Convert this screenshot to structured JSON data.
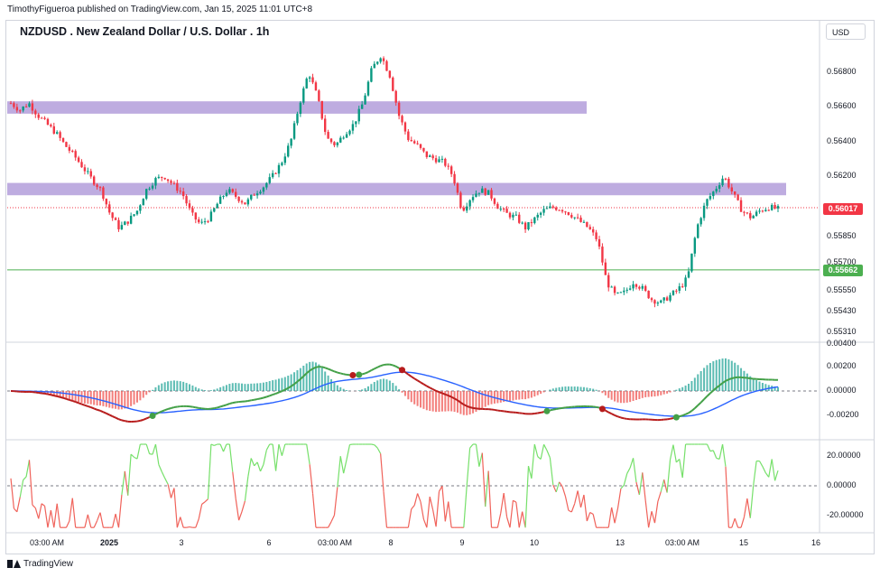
{
  "header": {
    "published": "TimothyFigueroa published on TradingView.com, Jan 15, 2025 11:01 UTC+8"
  },
  "footer": {
    "brand": "TradingView"
  },
  "chart_data": {
    "type": "candlestick",
    "title": "NZDUSD . New Zealand Dollar / U.S. Dollar . 1h",
    "currency": "USD",
    "price_ticks": [
      "0.56800",
      "0.56600",
      "0.56400",
      "0.56200",
      "0.55850",
      "0.55700",
      "0.55550",
      "0.55430",
      "0.55310"
    ],
    "last_price": "0.56017",
    "hline_price": "0.55662",
    "colors": {
      "up": "#089981",
      "down": "#f23645",
      "zone": "#b39ddb",
      "last_price": "#f23645",
      "hline": "#4caf50",
      "macd": "#43a047",
      "signal": "#b71c1c",
      "slow": "#2962ff",
      "osc_up": "#76e06a",
      "osc_down": "#f0625a"
    },
    "zones": [
      {
        "from": 0.5658,
        "to": 0.5662,
        "label": ""
      },
      {
        "from": 0.5611,
        "to": 0.5615,
        "label": ""
      }
    ],
    "x_labels": [
      "03:00 AM",
      "2025",
      "3",
      "6",
      "03:00 AM",
      "8",
      "9",
      "10",
      "13",
      "03:00 AM",
      "15",
      "16"
    ],
    "macd_ticks": [
      "0.00400",
      "0.00200",
      "0.00000",
      "-0.00200"
    ],
    "osc_ticks": [
      "20.00000",
      "0.00000",
      "-20.00000"
    ],
    "price_path": [
      0.5662,
      0.5658,
      0.5662,
      0.5655,
      0.565,
      0.5645,
      0.5638,
      0.5632,
      0.5625,
      0.5618,
      0.5612,
      0.5598,
      0.559,
      0.5594,
      0.56,
      0.5612,
      0.5618,
      0.562,
      0.5615,
      0.561,
      0.5598,
      0.5592,
      0.5596,
      0.5605,
      0.5612,
      0.5608,
      0.5604,
      0.561,
      0.5614,
      0.562,
      0.5628,
      0.564,
      0.5662,
      0.568,
      0.5665,
      0.5642,
      0.5638,
      0.5645,
      0.565,
      0.5662,
      0.5682,
      0.569,
      0.5678,
      0.5655,
      0.5642,
      0.5638,
      0.5632,
      0.563,
      0.5628,
      0.562,
      0.56,
      0.5608,
      0.5612,
      0.561,
      0.5602,
      0.5598,
      0.5596,
      0.559,
      0.5595,
      0.56,
      0.5602,
      0.5601,
      0.5598,
      0.5594,
      0.559,
      0.5583,
      0.556,
      0.5552,
      0.5554,
      0.556,
      0.5556,
      0.555,
      0.5548,
      0.5552,
      0.5556,
      0.5562,
      0.559,
      0.5605,
      0.5612,
      0.562,
      0.561,
      0.56,
      0.5596,
      0.56,
      0.5602,
      0.5601
    ]
  }
}
